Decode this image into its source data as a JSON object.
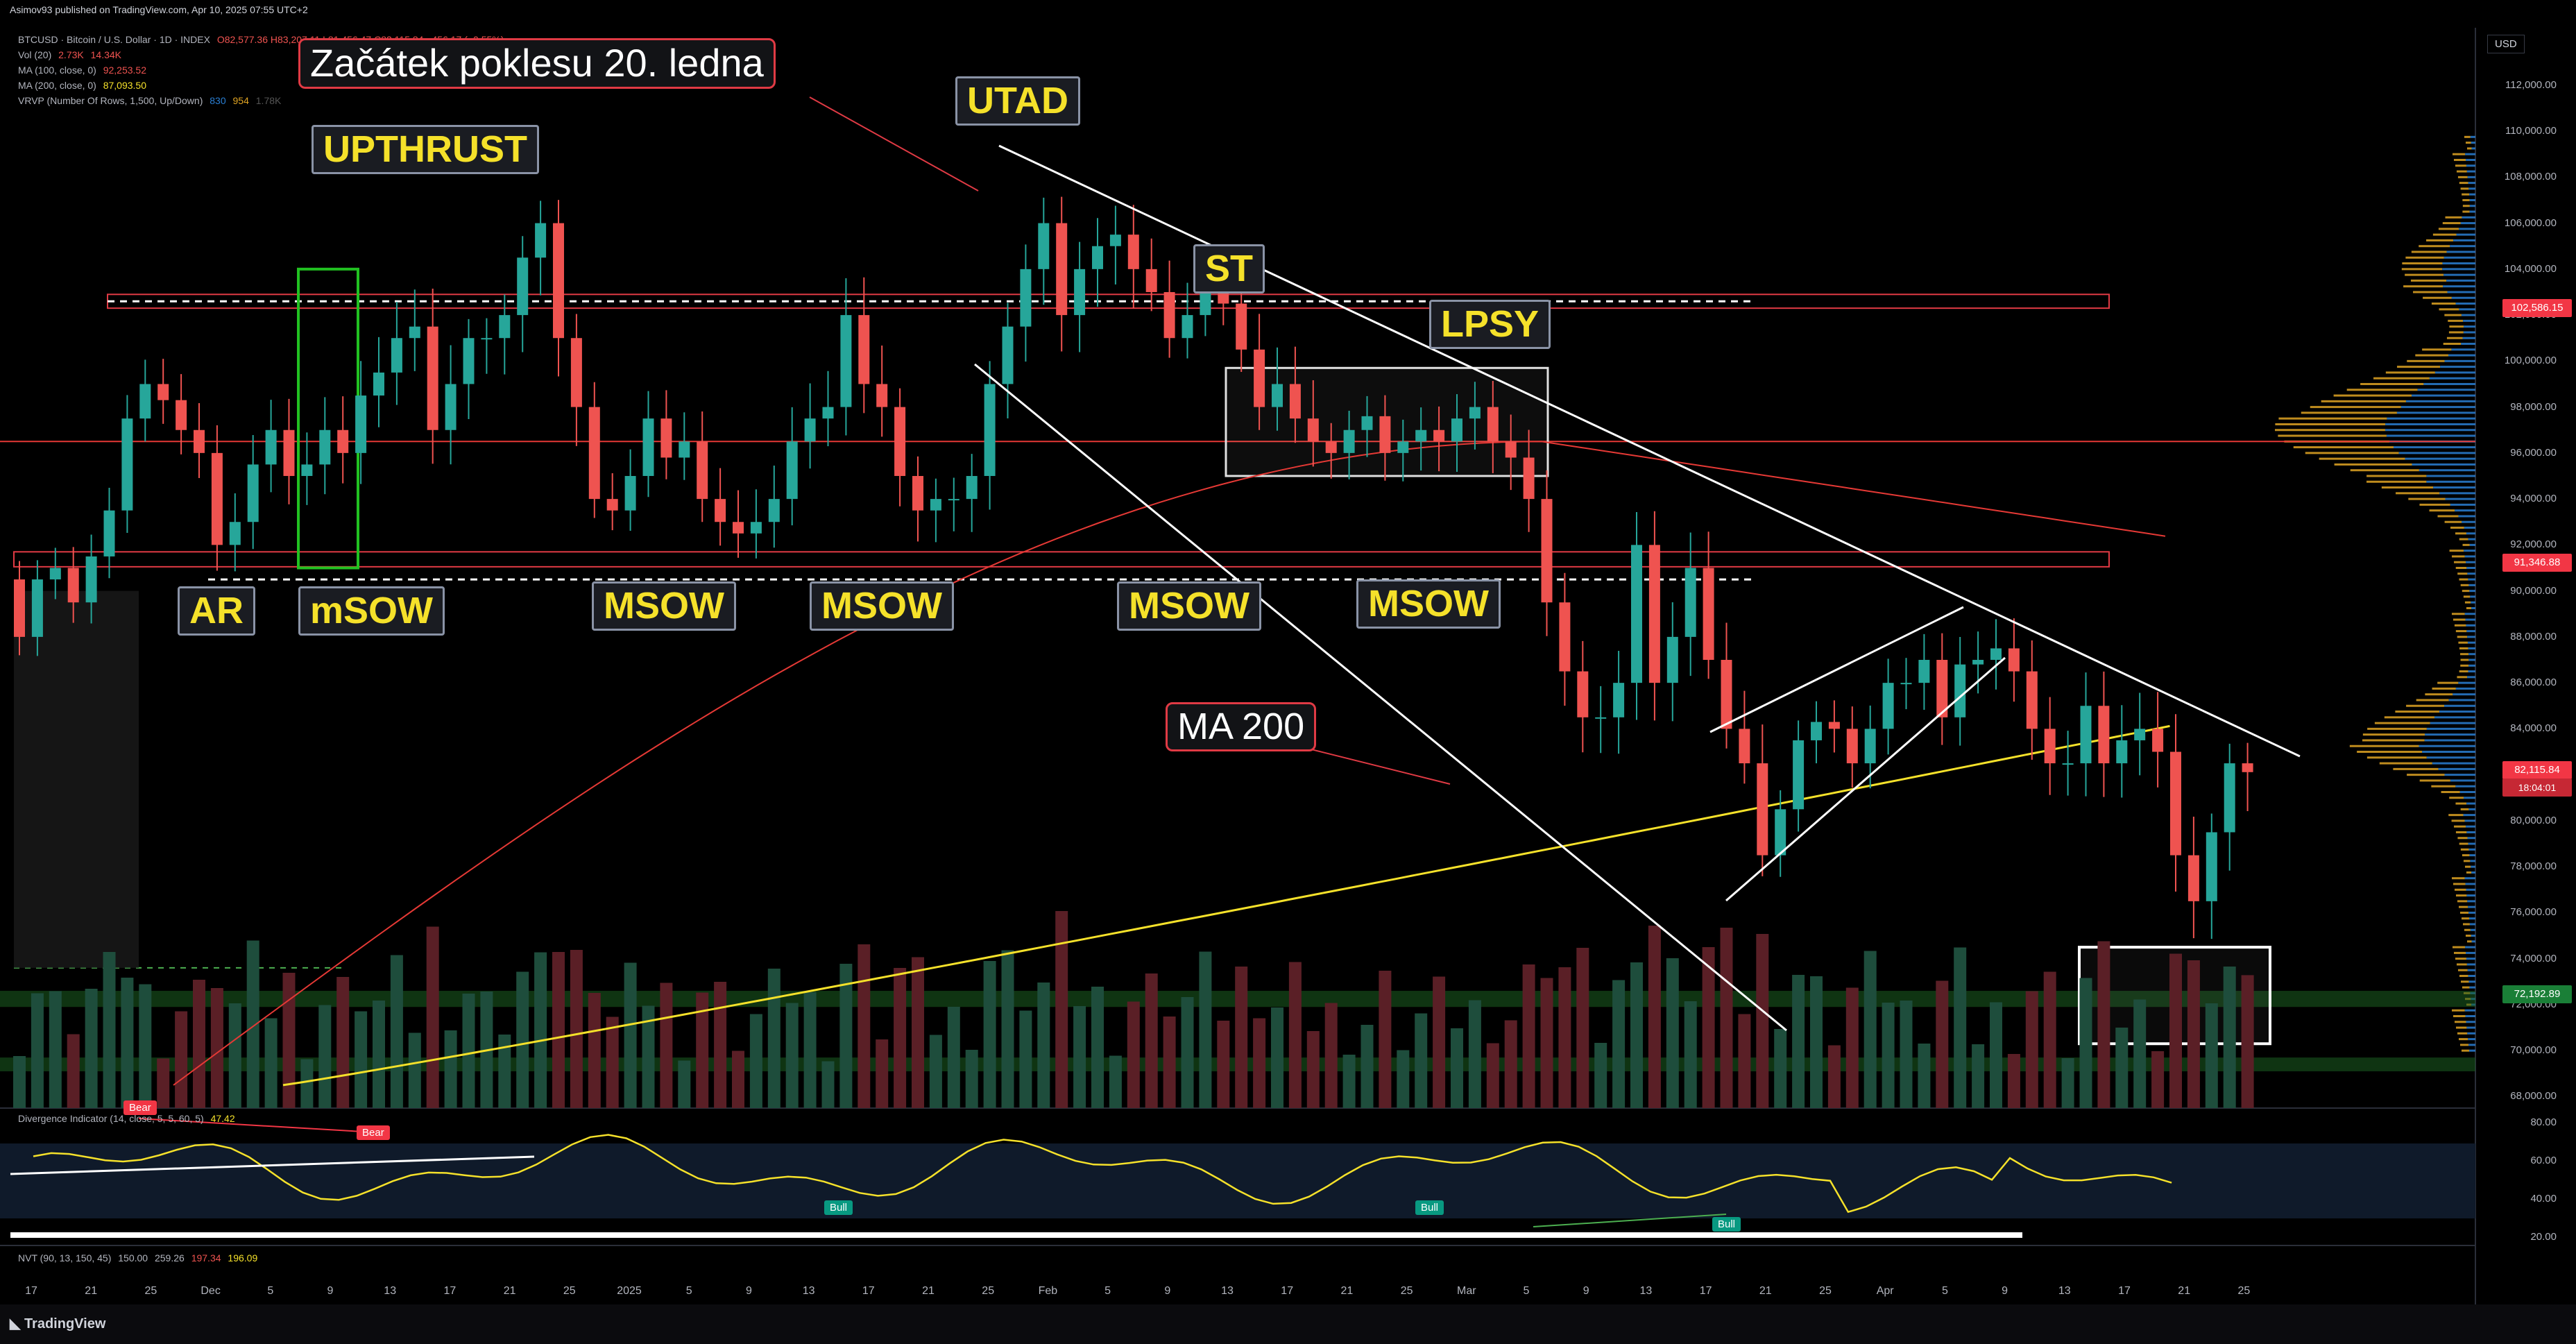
{
  "header": {
    "publisher": "Asimov93 published on TradingView.com, Apr 10, 2025 07:55 UTC+2",
    "symbol_line": "BTCUSD · Bitcoin / U.S. Dollar · 1D · INDEX",
    "ohlc": "O82,577.36 H83,207.11 L81,456.47 C82,115.84 −456.17 (−0.55%)",
    "vol": "Vol (20)",
    "vol_a": "2.73K",
    "vol_b": "14.34K",
    "ma100_label": "MA (100, close, 0)",
    "ma100_value": "92,253.52",
    "ma200_label": "MA (200, close, 0)",
    "ma200_value": "87,093.50",
    "vrvp_label": "VRVP (Number Of Rows, 1,500, Up/Down)",
    "vrvp_a": "830",
    "vrvp_b": "954",
    "vrvp_c": "1.78K"
  },
  "currency": "USD",
  "annotations": {
    "zacatek": "Začátek poklesu 20. ledna",
    "utad": "UTAD",
    "upthrust": "UPTHRUST",
    "st": "ST",
    "lpsy": "LPSY",
    "ar": "AR",
    "msow_small": "mSOW",
    "msow1": "MSOW",
    "msow2": "MSOW",
    "msow3": "MSOW",
    "msow4": "MSOW",
    "ma200": "MA 200"
  },
  "price_tags": {
    "level1": "102,586.15",
    "level2": "91,346.88",
    "current": "82,115.84",
    "countdown": "18:04:01",
    "level3": "72,192.89"
  },
  "colors": {
    "up": "#26a69a",
    "down": "#ef5350",
    "ma200": "#f5e12a",
    "ma100": "#e53935",
    "vp_up": "#2a7fd4",
    "vp_down": "#e0a423",
    "annotation_text": "#f5e12a"
  },
  "indicators": {
    "divergence_label": "Divergence Indicator (14, close, 5, 5, 60, 5)",
    "divergence_value": "47.42",
    "nvt_label": "NVT (90, 13, 150, 45)",
    "nvt_a": "150.00",
    "nvt_b": "259.26",
    "nvt_c": "197.34",
    "nvt_d": "196.09",
    "bull": "Bull",
    "bear": "Bear",
    "osc_ticks": [
      "80.00",
      "60.00",
      "40.00",
      "20.00"
    ]
  },
  "tradingview": "TradingView",
  "chart_data": {
    "type": "candlestick",
    "title": "BTCUSD · Bitcoin / U.S. Dollar · 1D · INDEX",
    "y_ticks": [
      112000,
      110000,
      108000,
      106000,
      104000,
      102000,
      100000,
      98000,
      96000,
      94000,
      92000,
      90000,
      88000,
      86000,
      84000,
      82000,
      80000,
      78000,
      76000,
      74000,
      72000,
      70000,
      68000
    ],
    "ylim": [
      67500,
      114500
    ],
    "x_ticks": [
      "17",
      "21",
      "25",
      "Dec",
      "5",
      "9",
      "13",
      "17",
      "21",
      "25",
      "2025",
      "5",
      "9",
      "13",
      "17",
      "21",
      "25",
      "Feb",
      "5",
      "9",
      "13",
      "17",
      "21",
      "25",
      "Mar",
      "5",
      "9",
      "13",
      "17",
      "21",
      "25",
      "Apr",
      "5",
      "9",
      "13",
      "17",
      "21",
      "25"
    ],
    "candles_close": [
      88000,
      90500,
      91000,
      89500,
      91500,
      93500,
      97500,
      99000,
      98300,
      97000,
      96000,
      92000,
      93000,
      95500,
      97000,
      95000,
      95500,
      97000,
      96000,
      98500,
      99500,
      101000,
      101500,
      97000,
      99000,
      101000,
      101000,
      102000,
      104500,
      106000,
      101000,
      98000,
      94000,
      93500,
      95000,
      97500,
      95800,
      96500,
      94000,
      93000,
      92500,
      93000,
      94000,
      96500,
      97500,
      98000,
      102000,
      99000,
      98000,
      95000,
      93500,
      94000,
      94000,
      95000,
      99000,
      101500,
      104000,
      106000,
      102000,
      104000,
      105000,
      105500,
      104000,
      103000,
      101000,
      102000,
      103500,
      102500,
      100500,
      98000,
      99000,
      97500,
      96500,
      96000,
      97000,
      97600,
      96000,
      96500,
      97000,
      96500,
      97500,
      98000,
      96500,
      95800,
      94000,
      89500,
      86500,
      84500,
      84500,
      86000,
      92000,
      86000,
      88000,
      91000,
      87000,
      84000,
      82500,
      78500,
      80500,
      83500,
      84300,
      84000,
      82500,
      84000,
      86000,
      86000,
      87000,
      84500,
      86800,
      87000,
      87500,
      86500,
      84000,
      82500,
      82500,
      85000,
      82500,
      83500,
      84000,
      83000,
      78500,
      76500,
      79500,
      82500,
      82115.84
    ],
    "ma200_value": 87093.5,
    "ma100_value": 92253.52,
    "horizontal_levels": [
      102586.15,
      96500,
      91346.88,
      72192.89
    ],
    "oscillator": {
      "name": "Divergence Indicator",
      "ylim": [
        20,
        80
      ],
      "last": 47.42
    }
  }
}
